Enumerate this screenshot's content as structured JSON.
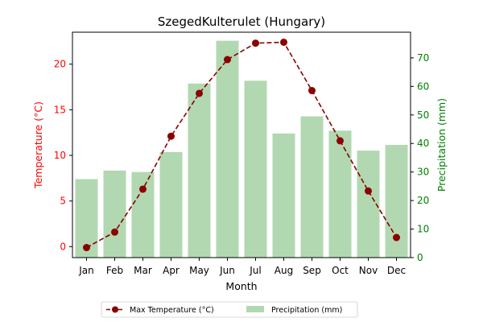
{
  "chart_data": {
    "type": "bar+line",
    "title": "SzegedKulterulet (Hungary)",
    "xlabel": "Month",
    "categories": [
      "Jan",
      "Feb",
      "Mar",
      "Apr",
      "May",
      "Jun",
      "Jul",
      "Aug",
      "Sep",
      "Oct",
      "Nov",
      "Dec"
    ],
    "left_axis": {
      "label": "Temperature (°C)",
      "color": "#ff0000",
      "ylim": [
        -1.2,
        23.5
      ],
      "ticks": [
        0,
        5,
        10,
        15,
        20
      ]
    },
    "right_axis": {
      "label": "Precipitation (mm)",
      "color": "#008000",
      "ylim": [
        0,
        79
      ],
      "ticks": [
        0,
        10,
        20,
        30,
        40,
        50,
        60,
        70
      ]
    },
    "series": [
      {
        "name": "Max Temperature (°C)",
        "kind": "line",
        "axis": "left",
        "color": "#8b0000",
        "values": [
          -0.1,
          1.6,
          6.3,
          12.1,
          16.8,
          20.5,
          22.3,
          22.4,
          17.1,
          11.6,
          6.1,
          1.0
        ]
      },
      {
        "name": "Precipitation (mm)",
        "kind": "bar",
        "axis": "right",
        "color": "#b2d8b2",
        "values": [
          27.5,
          30.5,
          30.0,
          37.0,
          61.0,
          76.0,
          62.0,
          43.5,
          49.5,
          44.5,
          37.5,
          39.5
        ]
      }
    ],
    "legend": {
      "placement": "bottom-center",
      "entries": [
        "Max Temperature (°C)",
        "Precipitation (mm)"
      ]
    },
    "grid": false
  }
}
